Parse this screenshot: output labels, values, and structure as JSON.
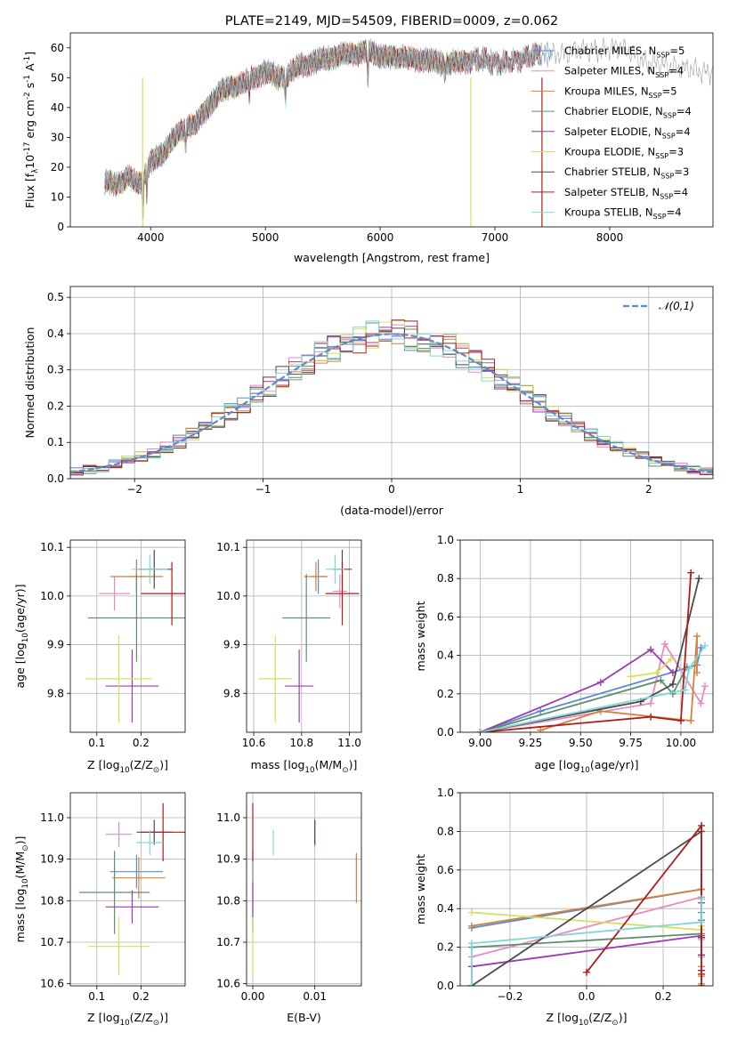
{
  "chart_data": [
    {
      "type": "line",
      "title": "PLATE=2149, MJD=54509, FIBERID=0009, z=0.062",
      "xlabel": "wavelength [Angstrom, rest frame]",
      "ylabel": "Flux [f$_\\lambda$10$^{-17}$ erg cm$^{-2}$ s$^{-1}$ A$^{-1}$]",
      "xlim": [
        3300,
        8900
      ],
      "ylim": [
        0,
        65
      ],
      "xticks": [
        "4000",
        "5000",
        "6000",
        "7000",
        "8000"
      ],
      "yticks": [
        "0",
        "10",
        "20",
        "30",
        "40",
        "50",
        "60"
      ],
      "legend_position": "right",
      "grid": false,
      "spectrum_anchors": {
        "x": [
          3600,
          3700,
          3800,
          3900,
          4000,
          4100,
          4200,
          4300,
          4400,
          4500,
          4600,
          4700,
          4800,
          4900,
          5000,
          5100,
          5200,
          5300,
          5400,
          5500,
          5600,
          5700,
          5800,
          5900,
          6000,
          6100,
          6200,
          6300,
          6400,
          6500,
          6600,
          6700,
          6800,
          6900,
          7000,
          7100,
          7200,
          7300,
          7400,
          7500,
          7600,
          7700,
          7800,
          7900,
          8000,
          8100,
          8200,
          8300,
          8400,
          8500,
          8600,
          8700,
          8800
        ],
        "y": [
          15,
          14,
          17,
          14,
          22,
          24,
          30,
          33,
          35,
          40,
          45,
          47,
          48,
          50,
          52,
          50,
          51,
          54,
          55,
          56,
          57,
          58,
          58,
          59,
          57,
          57,
          57,
          56,
          56,
          55,
          55,
          55,
          56,
          56,
          55,
          55,
          56,
          57,
          58,
          58,
          58,
          59,
          59,
          59,
          60,
          60,
          58,
          55,
          55,
          54,
          53,
          53,
          52
        ]
      },
      "absorption_dips": [
        {
          "x": 3933,
          "depth": 13
        },
        {
          "x": 3968,
          "depth": 8
        },
        {
          "x": 4305,
          "depth": 6
        },
        {
          "x": 4861,
          "depth": 5
        },
        {
          "x": 5175,
          "depth": 8
        },
        {
          "x": 5893,
          "depth": 10
        },
        {
          "x": 6563,
          "depth": 4
        }
      ],
      "series": [
        {
          "name": "Chabrier MILES, N$_{SSP}$=5",
          "color": "#5b8bd0",
          "x_end": 7500
        },
        {
          "name": "Salpeter MILES, N$_{SSP}$=4",
          "color": "#e58bc0",
          "x_end": 7400
        },
        {
          "name": "Kroupa MILES, N$_{SSP}$=5",
          "color": "#d2823c",
          "x_end": 7400
        },
        {
          "name": "Chabrier ELODIE, N$_{SSP}$=4",
          "color": "#5f8f6b",
          "x_end": 6800
        },
        {
          "name": "Salpeter ELODIE, N$_{SSP}$=4",
          "color": "#9a3cb0",
          "x_end": 6800
        },
        {
          "name": "Kroupa ELODIE, N$_{SSP}$=3",
          "color": "#d4e15a",
          "x_end": 6800
        },
        {
          "name": "Chabrier STELIB, N$_{SSP}$=3",
          "color": "#4a4a4a",
          "x_end": 7400
        },
        {
          "name": "Salpeter STELIB, N$_{SSP}$=4",
          "color": "#b01c1c",
          "x_end": 7400
        },
        {
          "name": "Kroupa STELIB, N$_{SSP}$=4",
          "color": "#7fd6d8",
          "x_end": 7400
        },
        {
          "name": "",
          "color": "#9a9a9a",
          "x_end": 8900
        }
      ]
    },
    {
      "type": "histogram",
      "xlabel": "(data-model)/error",
      "ylabel": "Normed distribution",
      "xlim": [
        -2.5,
        2.5
      ],
      "ylim": [
        0,
        0.53
      ],
      "xticks": [
        "−2",
        "−1",
        "0",
        "1",
        "2"
      ],
      "yticks": [
        "0.0",
        "0.1",
        "0.2",
        "0.3",
        "0.4",
        "0.5"
      ],
      "grid": true,
      "legend_position": "top-right",
      "gaussian": {
        "label": "$\\mathcal{N}(0,1)$",
        "color": "#5b8bd0",
        "mean": 0,
        "sigma": 1
      },
      "bin_edges_start": -2.5,
      "bin_width": 0.1,
      "series": [
        {
          "name": "Chabrier MILES",
          "color": "#5b8bd0",
          "noise_seed": 1
        },
        {
          "name": "Salpeter MILES",
          "color": "#e58bc0",
          "noise_seed": 2
        },
        {
          "name": "Kroupa MILES",
          "color": "#d2823c",
          "noise_seed": 3
        },
        {
          "name": "Chabrier ELODIE",
          "color": "#5f8f6b",
          "noise_seed": 4
        },
        {
          "name": "Salpeter ELODIE",
          "color": "#9a3cb0",
          "noise_seed": 5
        },
        {
          "name": "Kroupa ELODIE",
          "color": "#d4e15a",
          "noise_seed": 6
        },
        {
          "name": "Chabrier STELIB",
          "color": "#4a4a4a",
          "noise_seed": 7
        },
        {
          "name": "Salpeter STELIB",
          "color": "#b01c1c",
          "noise_seed": 8
        },
        {
          "name": "Kroupa STELIB",
          "color": "#7fd6d8",
          "noise_seed": 9
        }
      ]
    },
    {
      "type": "scatter",
      "panel": "age-vs-Z",
      "xlabel": "Z [log$_{10}$(Z/Z$_\\odot$)]",
      "ylabel": "age  [log$_{10}$(age/yr)]",
      "xlim": [
        0.04,
        0.3
      ],
      "ylim": [
        9.72,
        10.115
      ],
      "xticks": [
        "0.1",
        "0.2"
      ],
      "yticks": [
        "9.8",
        "9.9",
        "10.0",
        "10.1"
      ],
      "grid": true,
      "points": [
        {
          "color": "#5b8bd0",
          "x": 0.19,
          "xerr": 0.015,
          "y": 10.04,
          "yerr": 0.035
        },
        {
          "color": "#e58bc0",
          "x": 0.14,
          "xerr": 0.035,
          "y": 10.005,
          "yerr": 0.035
        },
        {
          "color": "#d2823c",
          "x": 0.19,
          "xerr": 0.06,
          "y": 10.04,
          "yerr": 0.03
        },
        {
          "color": "#5f8f6b",
          "x": 0.19,
          "xerr": 0.11,
          "y": 9.955,
          "yerr": 0.09
        },
        {
          "color": "#9a3cb0",
          "x": 0.18,
          "xerr": 0.06,
          "y": 9.815,
          "yerr": 0.075
        },
        {
          "color": "#d4e15a",
          "x": 0.15,
          "xerr": 0.075,
          "y": 9.83,
          "yerr": 0.09
        },
        {
          "color": "#4a4a4a",
          "x": 0.23,
          "xerr": 0.04,
          "y": 10.055,
          "yerr": 0.04
        },
        {
          "color": "#b01c1c",
          "x": 0.27,
          "xerr": 0.07,
          "y": 10.005,
          "yerr": 0.065
        },
        {
          "color": "#7fd6d8",
          "x": 0.22,
          "xerr": 0.04,
          "y": 10.055,
          "yerr": 0.03
        }
      ]
    },
    {
      "type": "scatter",
      "panel": "age-vs-mass",
      "xlabel": "mass [log$_{10}$(M/M$_\\odot$)]",
      "ylabel": "",
      "xlim": [
        10.57,
        11.05
      ],
      "ylim": [
        9.72,
        10.115
      ],
      "xticks": [
        "10.6",
        "10.8",
        "11.0"
      ],
      "yticks": [
        "9.8",
        "9.9",
        "10.0",
        "10.1"
      ],
      "grid": true,
      "points": [
        {
          "color": "#5b8bd0",
          "x": 10.87,
          "xerr": 0.03,
          "y": 10.04,
          "yerr": 0.035
        },
        {
          "color": "#e58bc0",
          "x": 10.96,
          "xerr": 0.03,
          "y": 10.01,
          "yerr": 0.035
        },
        {
          "color": "#d2823c",
          "x": 10.86,
          "xerr": 0.05,
          "y": 10.04,
          "yerr": 0.03
        },
        {
          "color": "#5f8f6b",
          "x": 10.82,
          "xerr": 0.1,
          "y": 9.955,
          "yerr": 0.09
        },
        {
          "color": "#9a3cb0",
          "x": 10.79,
          "xerr": 0.06,
          "y": 9.815,
          "yerr": 0.075
        },
        {
          "color": "#d4e15a",
          "x": 10.69,
          "xerr": 0.07,
          "y": 9.83,
          "yerr": 0.09
        },
        {
          "color": "#4a4a4a",
          "x": 10.97,
          "xerr": 0.04,
          "y": 10.055,
          "yerr": 0.04
        },
        {
          "color": "#b01c1c",
          "x": 10.97,
          "xerr": 0.07,
          "y": 10.005,
          "yerr": 0.065
        },
        {
          "color": "#7fd6d8",
          "x": 10.94,
          "xerr": 0.04,
          "y": 10.055,
          "yerr": 0.03
        }
      ]
    },
    {
      "type": "line",
      "panel": "weight-vs-age",
      "xlabel": "age  [log$_{10}$(age/yr)]",
      "ylabel": "mass weight",
      "xlim": [
        8.9,
        10.16
      ],
      "ylim": [
        0,
        1.0
      ],
      "xticks": [
        "9.00",
        "9.25",
        "9.50",
        "9.75",
        "10.00"
      ],
      "yticks": [
        "0.0",
        "0.2",
        "0.4",
        "0.6",
        "0.8",
        "1.0"
      ],
      "grid": true,
      "series": [
        {
          "color": "#5b8bd0",
          "x": [
            9.0,
            9.3,
            10.08,
            10.1
          ],
          "y": [
            0.0,
            0.11,
            0.35,
            0.44
          ]
        },
        {
          "color": "#e58bc0",
          "x": [
            9.0,
            9.85,
            9.92,
            10.1,
            10.12
          ],
          "y": [
            0.0,
            0.15,
            0.46,
            0.15,
            0.24
          ]
        },
        {
          "color": "#d2823c",
          "x": [
            9.3,
            9.6,
            10.05,
            10.08,
            10.08
          ],
          "y": [
            0.01,
            0.11,
            0.06,
            0.5,
            0.31
          ]
        },
        {
          "color": "#5f8f6b",
          "x": [
            9.0,
            9.9,
            9.96,
            10.03
          ],
          "y": [
            0.0,
            0.27,
            0.2,
            0.34
          ]
        },
        {
          "color": "#9a3cb0",
          "x": [
            9.0,
            9.6,
            9.85,
            9.96
          ],
          "y": [
            0.0,
            0.26,
            0.43,
            0.31
          ]
        },
        {
          "color": "#d4e15a",
          "x": [
            9.75,
            9.88,
            9.95
          ],
          "y": [
            0.29,
            0.31,
            0.38
          ]
        },
        {
          "color": "#4a4a4a",
          "x": [
            9.0,
            9.8,
            9.96,
            10.09
          ],
          "y": [
            0.0,
            0.16,
            0.25,
            0.8
          ]
        },
        {
          "color": "#b01c1c",
          "x": [
            9.0,
            9.85,
            10.0,
            10.05
          ],
          "y": [
            0.0,
            0.08,
            0.06,
            0.83
          ]
        },
        {
          "color": "#7fd6d8",
          "x": [
            9.0,
            10.02,
            10.04,
            10.12
          ],
          "y": [
            0.0,
            0.22,
            0.33,
            0.45
          ]
        }
      ]
    },
    {
      "type": "scatter",
      "panel": "mass-vs-Z",
      "xlabel": "Z [log$_{10}$(Z/Z$_\\odot$)]",
      "ylabel": "mass [log$_{10}$(M/M$_\\odot$)]",
      "xlim": [
        0.04,
        0.3
      ],
      "ylim": [
        10.595,
        11.06
      ],
      "xticks": [
        "0.1",
        "0.2"
      ],
      "yticks": [
        "10.6",
        "10.7",
        "10.8",
        "10.9",
        "11.0"
      ],
      "grid": true,
      "points": [
        {
          "color": "#5b8bd0",
          "x": 0.19,
          "xerr": 0.06,
          "y": 10.87,
          "yerr": 0.04
        },
        {
          "color": "#e58bc0",
          "x": 0.15,
          "xerr": 0.03,
          "y": 10.96,
          "yerr": 0.03
        },
        {
          "color": "#d2823c",
          "x": 0.195,
          "xerr": 0.06,
          "y": 10.855,
          "yerr": 0.05
        },
        {
          "color": "#5f8f6b",
          "x": 0.14,
          "xerr": 0.08,
          "y": 10.82,
          "yerr": 0.1
        },
        {
          "color": "#9a3cb0",
          "x": 0.18,
          "xerr": 0.06,
          "y": 10.785,
          "yerr": 0.04
        },
        {
          "color": "#d4e15a",
          "x": 0.15,
          "xerr": 0.07,
          "y": 10.69,
          "yerr": 0.07
        },
        {
          "color": "#4a4a4a",
          "x": 0.23,
          "xerr": 0.04,
          "y": 10.965,
          "yerr": 0.03
        },
        {
          "color": "#b01c1c",
          "x": 0.25,
          "xerr": 0.05,
          "y": 10.965,
          "yerr": 0.07
        },
        {
          "color": "#7fd6d8",
          "x": 0.22,
          "xerr": 0.03,
          "y": 10.94,
          "yerr": 0.03
        }
      ]
    },
    {
      "type": "scatter",
      "panel": "mass-vs-EBV",
      "xlabel": "E(B-V)",
      "ylabel": "",
      "xlim": [
        -0.001,
        0.0175
      ],
      "ylim": [
        10.595,
        11.06
      ],
      "xticks": [
        "0.00",
        "0.01"
      ],
      "yticks": [
        "10.6",
        "10.7",
        "10.8",
        "10.9",
        "11.0"
      ],
      "grid": true,
      "points": [
        {
          "color": "#5b8bd0",
          "x": 0.0167,
          "xerr": 0,
          "y": 10.87,
          "yerr": 0.04
        },
        {
          "color": "#e58bc0",
          "x": 0.01,
          "xerr": 0,
          "y": 10.96,
          "yerr": 0.03
        },
        {
          "color": "#d2823c",
          "x": 0.0167,
          "xerr": 0,
          "y": 10.855,
          "yerr": 0.06
        },
        {
          "color": "#5f8f6b",
          "x": 0.0,
          "xerr": 0,
          "y": 10.82,
          "yerr": 0.1
        },
        {
          "color": "#9a3cb0",
          "x": 0.0,
          "xerr": 0,
          "y": 10.785,
          "yerr": 0.06
        },
        {
          "color": "#d4e15a",
          "x": 0.0,
          "xerr": 0,
          "y": 10.69,
          "yerr": 0.07
        },
        {
          "color": "#4a4a4a",
          "x": 0.01,
          "xerr": 0,
          "y": 10.965,
          "yerr": 0.03
        },
        {
          "color": "#b01c1c",
          "x": 0.0,
          "xerr": 0,
          "y": 10.965,
          "yerr": 0.07
        },
        {
          "color": "#7fd6d8",
          "x": 0.0033,
          "xerr": 0,
          "y": 10.94,
          "yerr": 0.03
        }
      ]
    },
    {
      "type": "line",
      "panel": "weight-vs-Z",
      "xlabel": "Z [log$_{10}$(Z/Z$_\\odot$)]",
      "ylabel": "mass weight",
      "xlim": [
        -0.33,
        0.33
      ],
      "ylim": [
        0,
        1.0
      ],
      "xticks": [
        "−0.2",
        "0.0",
        "0.2"
      ],
      "yticks": [
        "0.0",
        "0.2",
        "0.4",
        "0.6",
        "0.8",
        "1.0"
      ],
      "grid": true,
      "series": [
        {
          "color": "#5b8bd0",
          "x": [
            -0.3,
            0.3,
            0.3,
            0.3
          ],
          "y": [
            0.3,
            0.5,
            0.45,
            0.38
          ]
        },
        {
          "color": "#e58bc0",
          "x": [
            -0.3,
            0.3,
            0.3,
            0.3
          ],
          "y": [
            0.15,
            0.46,
            0.24,
            0.15
          ]
        },
        {
          "color": "#d2823c",
          "x": [
            -0.3,
            0.3,
            0.3,
            0.3,
            0.3
          ],
          "y": [
            0.31,
            0.5,
            0.1,
            0.05,
            0.01
          ]
        },
        {
          "color": "#5f8f6b",
          "x": [
            -0.3,
            0.3,
            0.3
          ],
          "y": [
            0.2,
            0.27,
            0.34
          ]
        },
        {
          "color": "#9a3cb0",
          "x": [
            -0.3,
            -0.3,
            0.3,
            0.3
          ],
          "y": [
            0.0,
            0.1,
            0.26,
            0.43
          ]
        },
        {
          "color": "#d4e15a",
          "x": [
            -0.3,
            0.3,
            0.3
          ],
          "y": [
            0.38,
            0.29,
            0.31
          ]
        },
        {
          "color": "#4a4a4a",
          "x": [
            -0.3,
            0.3,
            0.3,
            0.3
          ],
          "y": [
            0.0,
            0.8,
            0.25,
            0.16
          ]
        },
        {
          "color": "#b01c1c",
          "x": [
            0.0,
            0.3,
            0.3,
            0.3,
            0.3
          ],
          "y": [
            0.07,
            0.83,
            0.08,
            0.06,
            0.0
          ]
        },
        {
          "color": "#7fd6d8",
          "x": [
            -0.3,
            -0.3,
            0.3,
            0.3
          ],
          "y": [
            0.0,
            0.22,
            0.33,
            0.45
          ]
        }
      ]
    }
  ]
}
